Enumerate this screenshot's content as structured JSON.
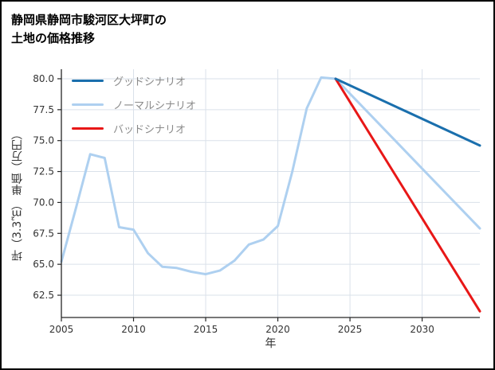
{
  "page": {
    "title_line1": "静岡県静岡市駿河区大坪町の",
    "title_line2": "土地の価格推移"
  },
  "chart_data": {
    "type": "line",
    "title": "静岡県静岡市駿河区大坪町の土地の価格推移",
    "xlabel": "年",
    "ylabel": "坪（3.3㎡） 単価（万円）",
    "xlim": [
      2005,
      2034
    ],
    "ylim": [
      60.7,
      80.77
    ],
    "xticks": [
      2005,
      2010,
      2015,
      2020,
      2025,
      2030
    ],
    "yticks": [
      62.5,
      65.0,
      67.5,
      70.0,
      72.5,
      75.0,
      77.5,
      80.0
    ],
    "grid": true,
    "legend_position": "upper-left",
    "colors": {
      "good": "#1a6fad",
      "normal": "#aed0f0",
      "bad": "#e81717",
      "grid": "#dae1ea",
      "axis": "#262626",
      "tick_text": "#333333",
      "legend_text": "#8a8a8a"
    },
    "legend": [
      {
        "label": "グッドシナリオ",
        "color": "#1a6fad"
      },
      {
        "label": "ノーマルシナリオ",
        "color": "#aed0f0"
      },
      {
        "label": "バッドシナリオ",
        "color": "#e81717"
      }
    ],
    "series": [
      {
        "key": "history",
        "color": "#aed0f0",
        "width": 3,
        "x": [
          2005,
          2006,
          2007,
          2008,
          2009,
          2010,
          2011,
          2012,
          2013,
          2014,
          2015,
          2016,
          2017,
          2018,
          2019,
          2020,
          2021,
          2022,
          2023,
          2024
        ],
        "y": [
          65.2,
          69.5,
          73.9,
          73.6,
          68.0,
          67.8,
          65.9,
          64.8,
          64.7,
          64.4,
          64.2,
          64.5,
          65.3,
          66.6,
          67.0,
          68.1,
          72.5,
          77.6,
          80.1,
          80.0
        ]
      },
      {
        "key": "normal-scenario",
        "color": "#aed0f0",
        "width": 3,
        "x": [
          2024,
          2034
        ],
        "y": [
          80.0,
          67.9
        ]
      },
      {
        "key": "bad-scenario",
        "color": "#e81717",
        "width": 3,
        "x": [
          2024,
          2034
        ],
        "y": [
          80.0,
          61.2
        ]
      },
      {
        "key": "good-scenario",
        "color": "#1a6fad",
        "width": 3,
        "x": [
          2024,
          2034
        ],
        "y": [
          80.0,
          74.6
        ]
      }
    ]
  }
}
